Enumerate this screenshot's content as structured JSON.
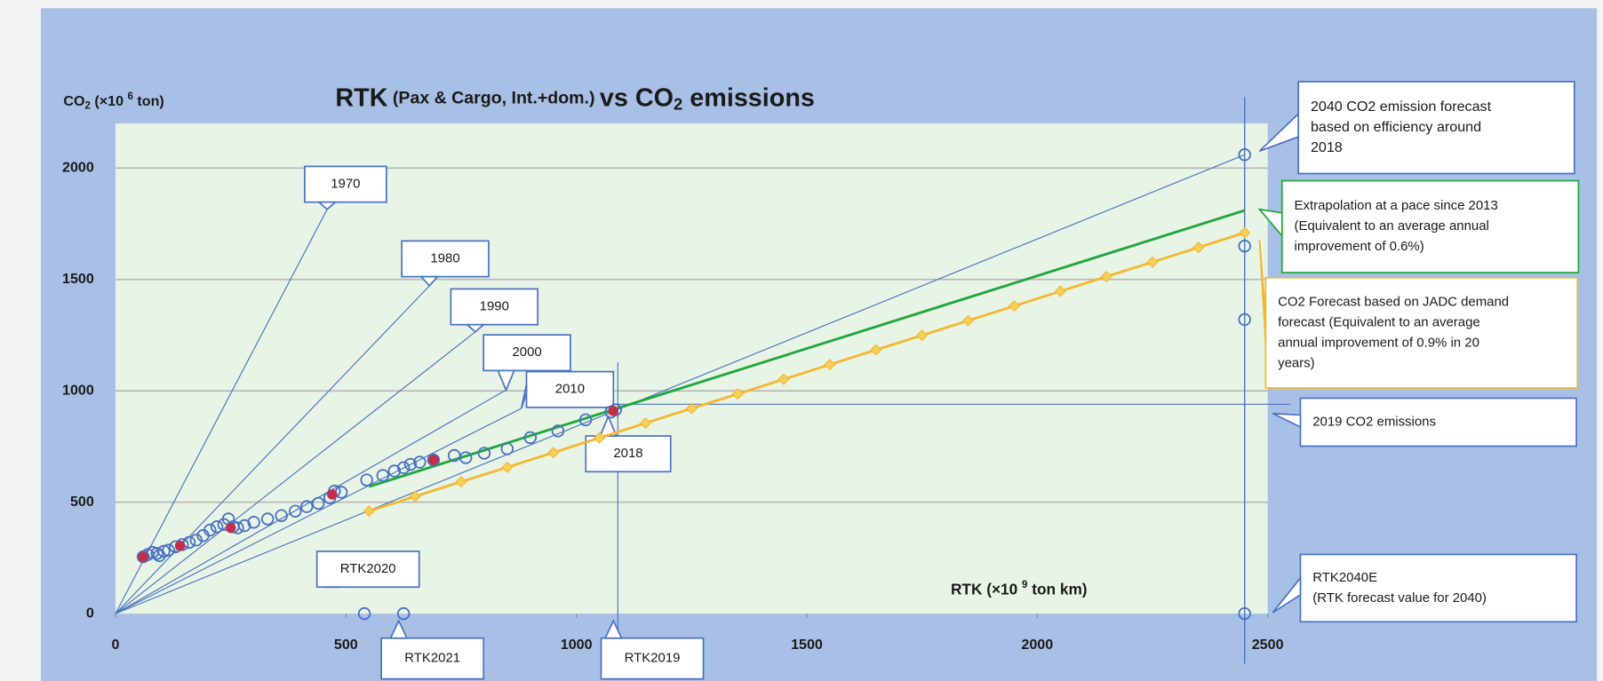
{
  "chart_data": {
    "type": "scatter",
    "title": [
      "RTK",
      " (Pax & Cargo, Int.+dom.) ",
      "vs CO",
      "2",
      " emissions"
    ],
    "y_label": [
      "CO",
      "2",
      " (×10 ",
      "6",
      " ton)"
    ],
    "x_label": [
      "RTK (×10 ",
      "9",
      " ton km)"
    ],
    "xlim": [
      0,
      2500
    ],
    "ylim": [
      0,
      2200
    ],
    "xticks": [
      0,
      500,
      1000,
      1500,
      2000,
      2500
    ],
    "yticks": [
      0,
      500,
      1000,
      1500,
      2000
    ],
    "grid": true,
    "historical": {
      "color": "#4a72c4",
      "x": [
        60,
        70,
        80,
        90,
        95,
        105,
        115,
        130,
        145,
        160,
        175,
        190,
        205,
        220,
        235,
        245,
        255,
        265,
        280,
        300,
        330,
        360,
        390,
        415,
        440,
        465,
        475,
        490,
        545,
        580,
        605,
        625,
        640,
        660,
        690,
        735,
        760,
        800,
        850,
        900,
        960,
        1020,
        1075,
        1085
      ],
      "y": [
        255,
        265,
        275,
        270,
        260,
        280,
        285,
        300,
        310,
        320,
        330,
        350,
        375,
        390,
        400,
        425,
        390,
        385,
        395,
        410,
        425,
        440,
        460,
        480,
        495,
        520,
        550,
        545,
        600,
        620,
        640,
        655,
        670,
        680,
        690,
        710,
        700,
        720,
        740,
        790,
        820,
        870,
        905,
        915
      ]
    },
    "highlighted": {
      "color": "#c0304a",
      "x": [
        60,
        140,
        250,
        470,
        690,
        1080
      ],
      "y": [
        255,
        305,
        385,
        535,
        690,
        910
      ]
    },
    "extrapolation": {
      "color": "#1fa83c",
      "x": [
        550,
        2450
      ],
      "y": [
        570,
        1810
      ]
    },
    "jadc_forecast": {
      "color": "#f5b733",
      "x": [
        550,
        650,
        750,
        850,
        950,
        1050,
        1150,
        1250,
        1350,
        1450,
        1550,
        1650,
        1750,
        1850,
        1950,
        2050,
        2150,
        2250,
        2350,
        2450
      ],
      "y": [
        460,
        526,
        592,
        657,
        723,
        789,
        855,
        921,
        986,
        1052,
        1118,
        1184,
        1249,
        1315,
        1381,
        1447,
        1513,
        1578,
        1644,
        1710
      ]
    },
    "forecast_2040": {
      "color": "#4a72c4",
      "x": [
        2450,
        2450,
        2450,
        2450
      ],
      "y": [
        2060,
        1650,
        1320,
        0
      ]
    },
    "rtk_2020_2021": {
      "color": "#4a72c4",
      "x": [
        540,
        625
      ],
      "y": [
        0,
        0
      ]
    },
    "rtk2019": 1090,
    "co2_2019": 940,
    "callouts": [
      {
        "lines": [
          "1970"
        ]
      },
      {
        "lines": [
          "1980"
        ]
      },
      {
        "lines": [
          "1990"
        ]
      },
      {
        "lines": [
          "2000"
        ]
      },
      {
        "lines": [
          "2010"
        ]
      },
      {
        "lines": [
          "2018"
        ]
      },
      {
        "lines": [
          "RTK2020"
        ]
      },
      {
        "lines": [
          "RTK2021"
        ]
      },
      {
        "lines": [
          "RTK2019"
        ]
      },
      {
        "lines": [
          "2040 CO2 emission forecast",
          "based on efficiency around",
          "2018"
        ]
      },
      {
        "lines": [
          "Extrapolation at a pace since 2013",
          "(Equivalent to an average annual",
          "improvement of 0.6%)"
        ]
      },
      {
        "lines": [
          "CO2 Forecast based on JADC demand",
          "forecast (Equivalent to an average",
          "annual improvement of 0.9% in 20",
          "years)"
        ]
      },
      {
        "lines": [
          "2019 CO2 emissions"
        ]
      },
      {
        "lines": [
          "RTK2040E",
          "(RTK forecast value for 2040)"
        ]
      }
    ]
  }
}
